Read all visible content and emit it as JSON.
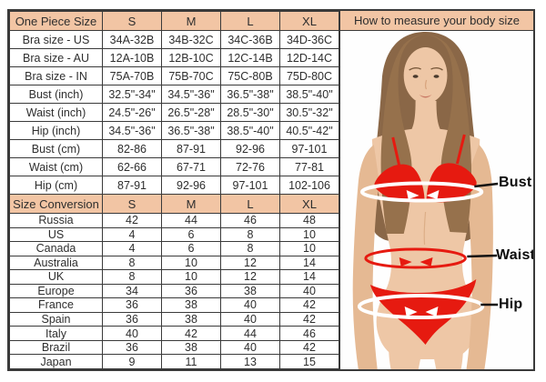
{
  "colors": {
    "header_bg": "#f2c5a4",
    "border": "#3a3a3a",
    "text": "#2e2e2e",
    "red": "#e61a10",
    "skin": "#eec7a6",
    "skin_shade": "#e5b993",
    "hair": "#8a6747",
    "hair_front": "#96714c",
    "label_color": "#0d0d0d",
    "measure_white": "#ffffff"
  },
  "size_table": {
    "sections": [
      {
        "header": {
          "label": "One Piece Size",
          "columns": [
            "S",
            "M",
            "L",
            "XL"
          ]
        },
        "rows": [
          {
            "label": "Bra size - US",
            "values": [
              "34A-32B",
              "34B-32C",
              "34C-36B",
              "34D-36C"
            ]
          },
          {
            "label": "Bra size - AU",
            "values": [
              "12A-10B",
              "12B-10C",
              "12C-14B",
              "12D-14C"
            ]
          },
          {
            "label": "Bra size - IN",
            "values": [
              "75A-70B",
              "75B-70C",
              "75C-80B",
              "75D-80C"
            ]
          },
          {
            "label": "Bust (inch)",
            "values": [
              "32.5\"-34\"",
              "34.5\"-36\"",
              "36.5\"-38\"",
              "38.5\"-40\""
            ]
          },
          {
            "label": "Waist (inch)",
            "values": [
              "24.5\"-26\"",
              "26.5\"-28\"",
              "28.5\"-30\"",
              "30.5\"-32\""
            ]
          },
          {
            "label": "Hip (inch)",
            "values": [
              "34.5\"-36\"",
              "36.5\"-38\"",
              "38.5\"-40\"",
              "40.5\"-42\""
            ]
          },
          {
            "label": "Bust (cm)",
            "values": [
              "82-86",
              "87-91",
              "92-96",
              "97-101"
            ]
          },
          {
            "label": "Waist (cm)",
            "values": [
              "62-66",
              "67-71",
              "72-76",
              "77-81"
            ]
          },
          {
            "label": "Hip (cm)",
            "values": [
              "87-91",
              "92-96",
              "97-101",
              "102-106"
            ]
          }
        ]
      },
      {
        "header": {
          "label": "Size Conversion",
          "columns": [
            "S",
            "M",
            "L",
            "XL"
          ]
        },
        "rows": [
          {
            "label": "Russia",
            "values": [
              "42",
              "44",
              "46",
              "48"
            ]
          },
          {
            "label": "US",
            "values": [
              "4",
              "6",
              "8",
              "10"
            ]
          },
          {
            "label": "Canada",
            "values": [
              "4",
              "6",
              "8",
              "10"
            ]
          },
          {
            "label": "Australia",
            "values": [
              "8",
              "10",
              "12",
              "14"
            ]
          },
          {
            "label": "UK",
            "values": [
              "8",
              "10",
              "12",
              "14"
            ]
          },
          {
            "label": "Europe",
            "values": [
              "34",
              "36",
              "38",
              "40"
            ]
          },
          {
            "label": "France",
            "values": [
              "36",
              "38",
              "40",
              "42"
            ]
          },
          {
            "label": "Spain",
            "values": [
              "36",
              "38",
              "40",
              "42"
            ]
          },
          {
            "label": "Italy",
            "values": [
              "40",
              "42",
              "44",
              "46"
            ]
          },
          {
            "label": "Brazil",
            "values": [
              "36",
              "38",
              "40",
              "42"
            ]
          },
          {
            "label": "Japan",
            "values": [
              "9",
              "11",
              "13",
              "15"
            ]
          }
        ]
      }
    ]
  },
  "measure_panel": {
    "title": "How to measure your body size",
    "labels": {
      "bust": "Bust",
      "waist": "Waist",
      "hip": "Hip"
    }
  }
}
